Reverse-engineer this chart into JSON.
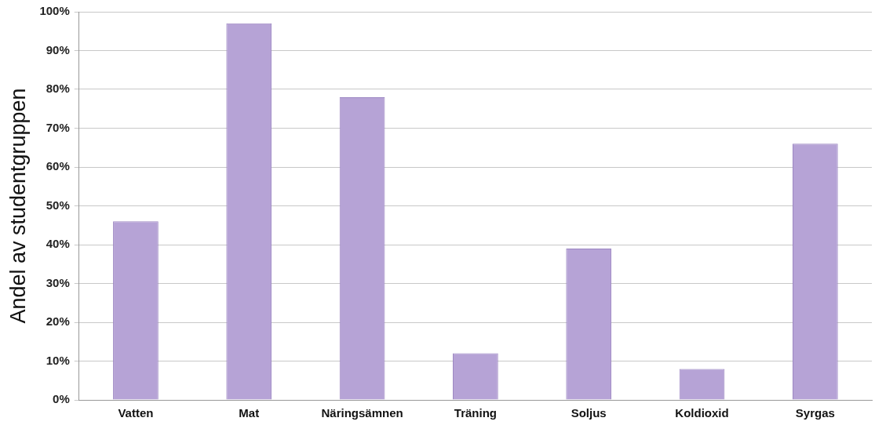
{
  "chart_data": {
    "type": "bar",
    "ylabel": "Andel av studentgruppen",
    "categories": [
      "Vatten",
      "Mat",
      "Näringsämnen",
      "Träning",
      "Soljus",
      "Koldioxid",
      "Syrgas"
    ],
    "values": [
      46,
      97,
      78,
      12,
      39,
      8,
      66
    ],
    "color": "#b6a3d6",
    "ylim": [
      0,
      100
    ],
    "yticks": [
      {
        "value": 0,
        "label": "0%"
      },
      {
        "value": 10,
        "label": "10%"
      },
      {
        "value": 20,
        "label": "20%"
      },
      {
        "value": 30,
        "label": "30%"
      },
      {
        "value": 40,
        "label": "40%"
      },
      {
        "value": 50,
        "label": "50%"
      },
      {
        "value": 60,
        "label": "60%"
      },
      {
        "value": 70,
        "label": "70%"
      },
      {
        "value": 80,
        "label": "80%"
      },
      {
        "value": 90,
        "label": "90%"
      },
      {
        "value": 100,
        "label": "100%"
      }
    ],
    "grid": "y",
    "legend": false
  }
}
